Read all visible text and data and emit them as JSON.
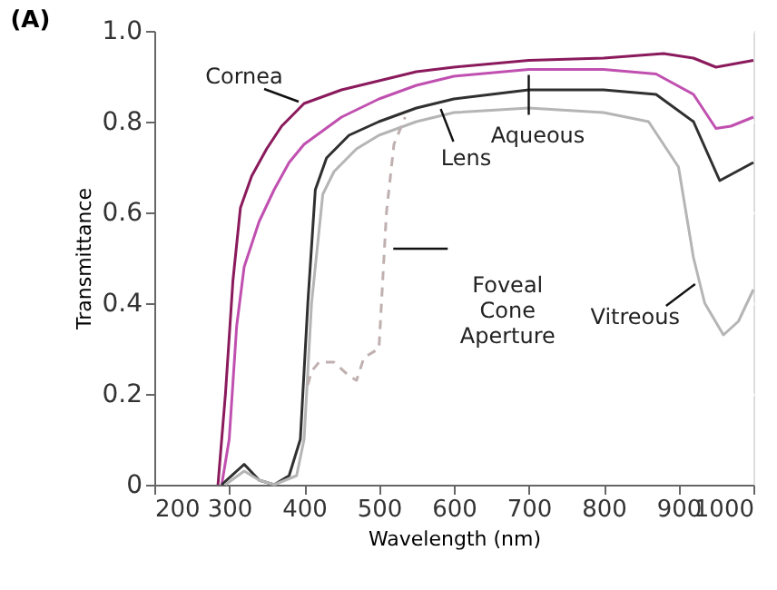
{
  "chart_data": {
    "type": "line",
    "title": "(A)",
    "xlabel": "Wavelength (nm)",
    "ylabel": "Transmittance",
    "xlim": [
      200,
      1000
    ],
    "xticks": [
      200,
      300,
      400,
      500,
      600,
      700,
      800,
      900,
      1000
    ],
    "ylim": [
      0,
      1
    ],
    "yticks": [
      0,
      0.2,
      0.4,
      0.6,
      0.8,
      {
        "value": 1,
        "label": "1.0"
      }
    ],
    "grid": "y",
    "series": [
      {
        "color": "#8a1a5c",
        "x": [
          285,
          295,
          305,
          315,
          330,
          350,
          370,
          400,
          450,
          500,
          550,
          600,
          700,
          800,
          880,
          920,
          950,
          1000
        ],
        "values": [
          0,
          0.2,
          0.45,
          0.61,
          0.68,
          0.74,
          0.79,
          0.84,
          0.87,
          0.89,
          0.91,
          0.92,
          0.935,
          0.94,
          0.95,
          0.94,
          0.92,
          0.935
        ]
      },
      {
        "color": "#c050b0",
        "x": [
          290,
          300,
          310,
          320,
          340,
          360,
          380,
          400,
          450,
          500,
          550,
          600,
          700,
          800,
          870,
          920,
          950,
          970,
          1000
        ],
        "values": [
          0,
          0.1,
          0.35,
          0.48,
          0.58,
          0.65,
          0.71,
          0.75,
          0.81,
          0.85,
          0.88,
          0.9,
          0.915,
          0.915,
          0.905,
          0.86,
          0.785,
          0.79,
          0.81
        ]
      },
      {
        "color": "#303030",
        "x": [
          290,
          310,
          320,
          340,
          360,
          380,
          395,
          405,
          415,
          430,
          460,
          500,
          550,
          600,
          700,
          800,
          870,
          920,
          955,
          1000
        ],
        "values": [
          0,
          0.03,
          0.045,
          0.01,
          0,
          0.02,
          0.1,
          0.4,
          0.65,
          0.72,
          0.77,
          0.8,
          0.83,
          0.85,
          0.87,
          0.87,
          0.86,
          0.8,
          0.67,
          0.71
        ]
      },
      {
        "color": "#b5b5b5",
        "x": [
          295,
          320,
          340,
          360,
          390,
          400,
          410,
          425,
          440,
          470,
          500,
          550,
          600,
          700,
          800,
          860,
          900,
          920,
          935,
          960,
          980,
          1000
        ],
        "values": [
          0,
          0.03,
          0.01,
          0,
          0.02,
          0.1,
          0.4,
          0.64,
          0.69,
          0.74,
          0.77,
          0.8,
          0.82,
          0.83,
          0.82,
          0.8,
          0.7,
          0.5,
          0.4,
          0.33,
          0.36,
          0.43
        ]
      },
      {
        "color": "#c0b0b0",
        "line_style": "dashed",
        "x": [
          405,
          410,
          420,
          440,
          460,
          470,
          480,
          500,
          505,
          510,
          520,
          535
        ],
        "values": [
          0.22,
          0.25,
          0.27,
          0.27,
          0.24,
          0.23,
          0.28,
          0.3,
          0.45,
          0.6,
          0.75,
          0.81
        ]
      }
    ],
    "annotations": [
      {
        "text": "Cornea",
        "x": 400,
        "y": 0.84
      },
      {
        "text": "Lens",
        "x": 580,
        "y": 0.84
      },
      {
        "text": "Aqueous",
        "x": 700,
        "y": 0.915
      },
      {
        "text": "Foveal\nCone\nAperture",
        "x": 507,
        "y": 0.52
      },
      {
        "text": "Vitreous",
        "x": 927,
        "y": 0.45
      }
    ]
  }
}
